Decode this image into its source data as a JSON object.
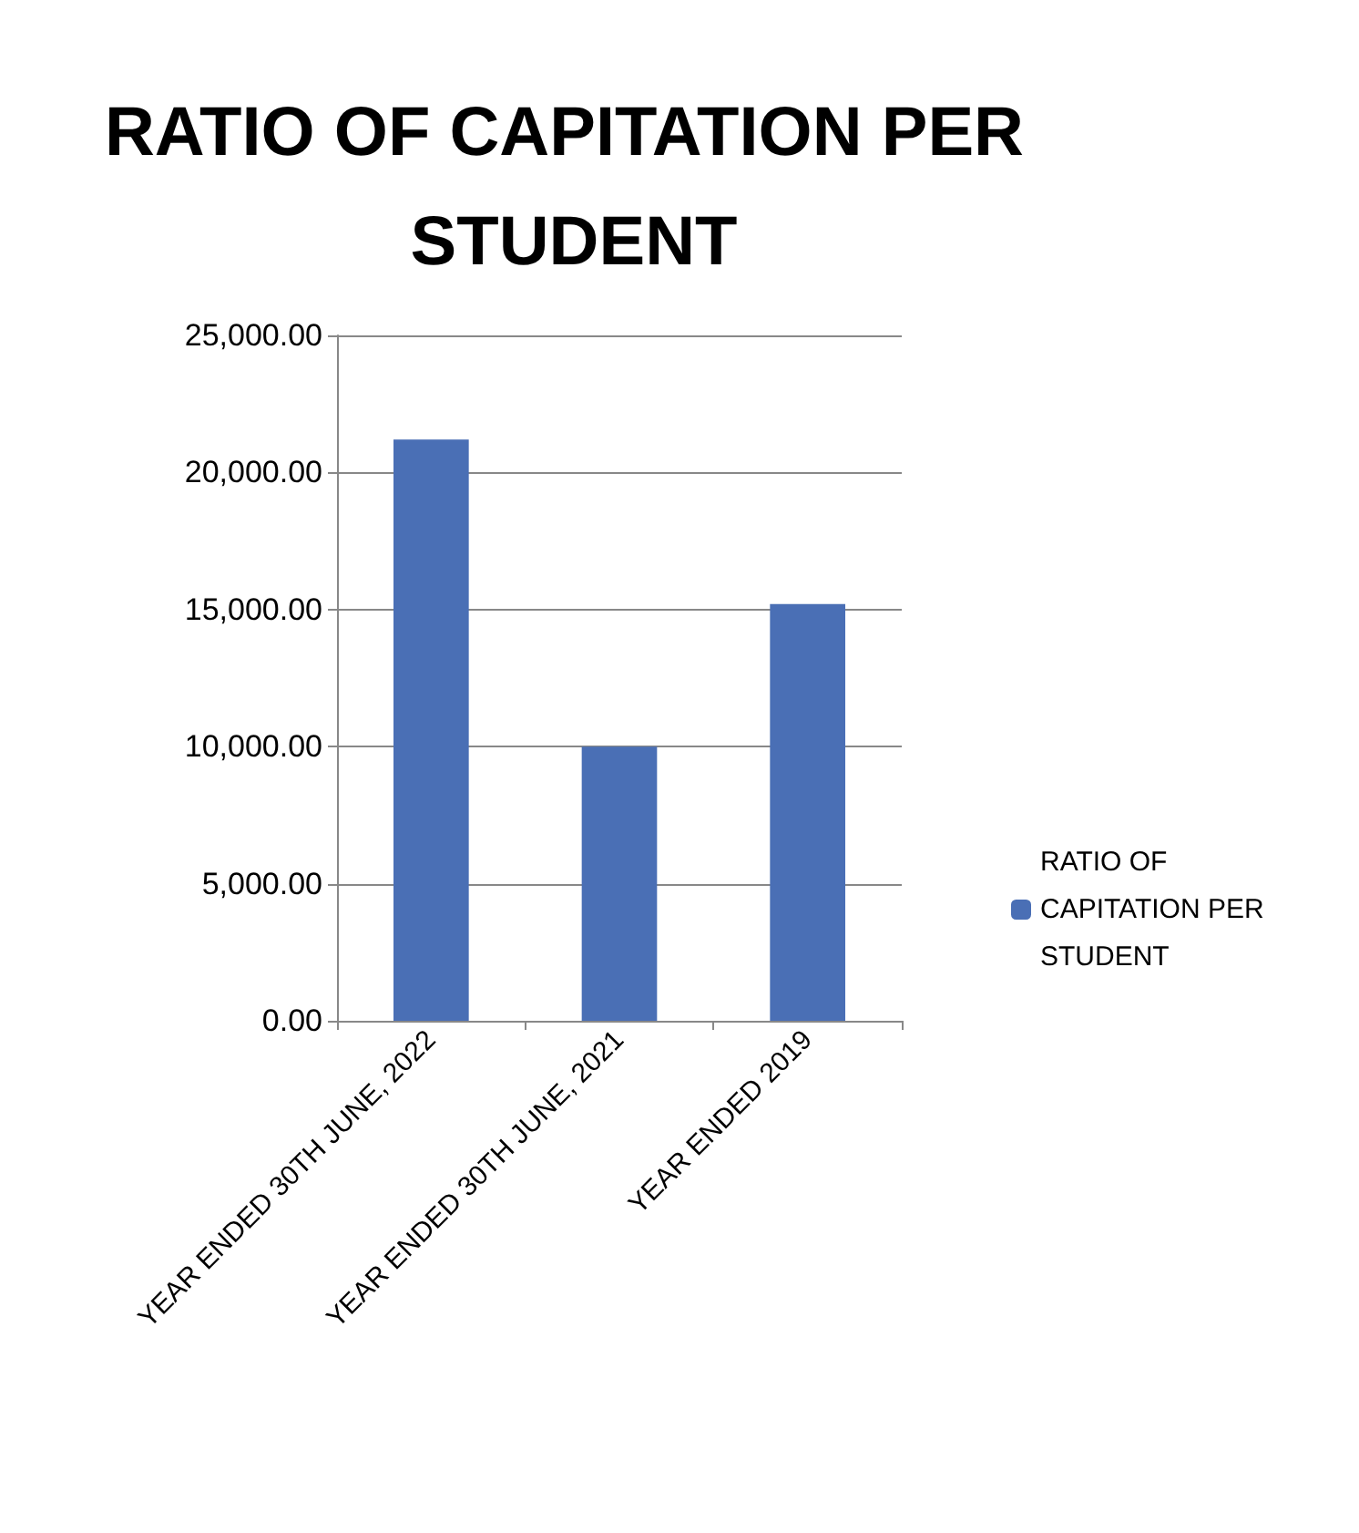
{
  "chart_data": {
    "type": "bar",
    "title": "RATIO OF CAPITATION PER STUDENT",
    "categories": [
      "YEAR ENDED 30TH JUNE, 2022",
      "YEAR ENDED 30TH JUNE, 2021",
      "YEAR ENDED 2019"
    ],
    "series": [
      {
        "name": "RATIO OF CAPITATION PER STUDENT",
        "color": "#4a6fb5",
        "values": [
          21200,
          10000,
          15200
        ]
      }
    ],
    "ylim": [
      0,
      25000
    ],
    "yticks": [
      {
        "value": 0,
        "label": "0.00"
      },
      {
        "value": 5000,
        "label": "5,000.00"
      },
      {
        "value": 10000,
        "label": "10,000.00"
      },
      {
        "value": 15000,
        "label": "15,000.00"
      },
      {
        "value": 20000,
        "label": "20,000.00"
      },
      {
        "value": 25000,
        "label": "25,000.00"
      }
    ],
    "grid": "y",
    "legend": "right"
  }
}
